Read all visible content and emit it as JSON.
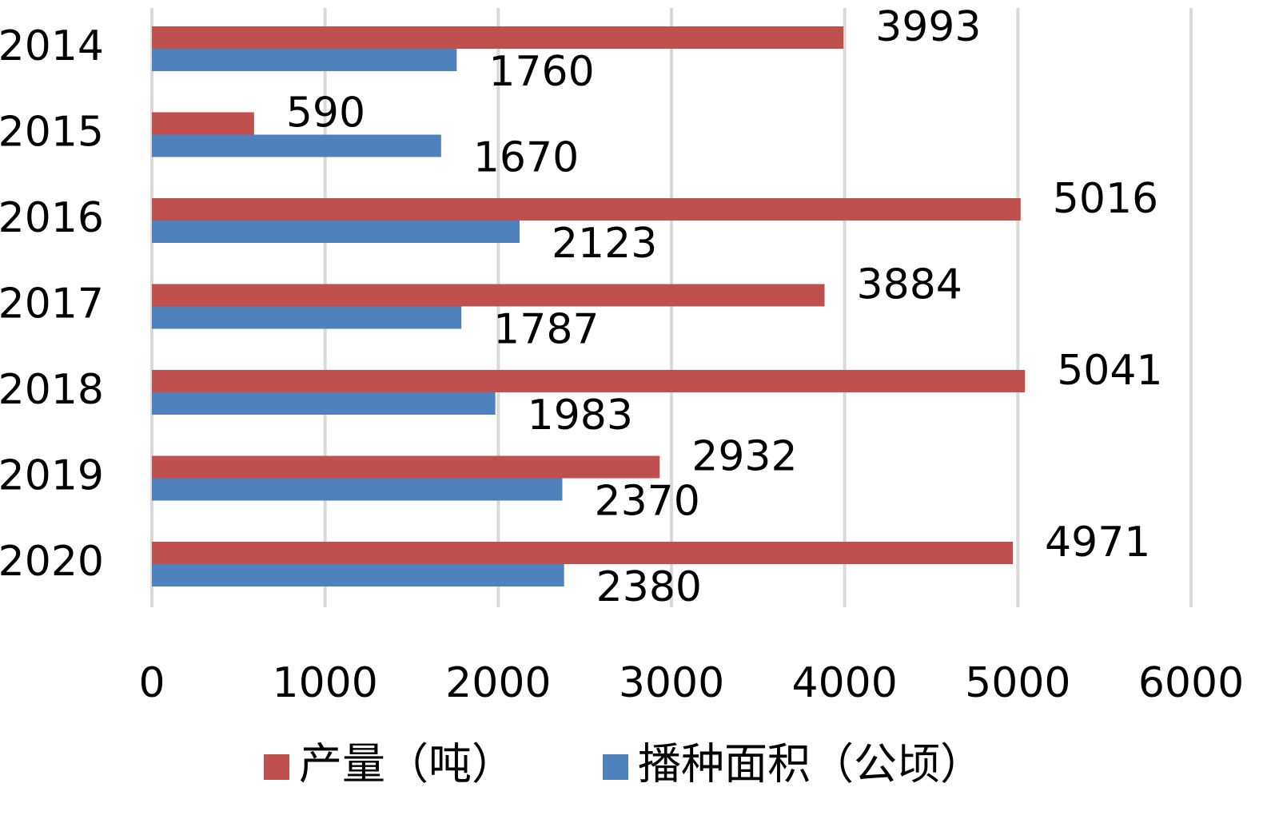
{
  "chart_data": {
    "type": "bar",
    "orientation": "horizontal",
    "categories": [
      "2014",
      "2015",
      "2016",
      "2017",
      "2018",
      "2019",
      "2020"
    ],
    "series": [
      {
        "name": "产量（吨）",
        "color": "#c0504d",
        "values": [
          3993,
          590,
          5016,
          3884,
          5041,
          2932,
          4971
        ]
      },
      {
        "name": "播种面积（公顷）",
        "color": "#4f81bd",
        "values": [
          1760,
          1670,
          2123,
          1787,
          1983,
          2370,
          2380
        ]
      }
    ],
    "xlim": [
      0,
      6000
    ],
    "xticks": [
      0,
      1000,
      2000,
      3000,
      4000,
      5000,
      6000
    ],
    "xtick_labels": [
      "0",
      "1000",
      "2000",
      "3000",
      "4000",
      "5000",
      "6000"
    ],
    "grid": "vertical",
    "legend": "bottom",
    "data_labels": true
  }
}
